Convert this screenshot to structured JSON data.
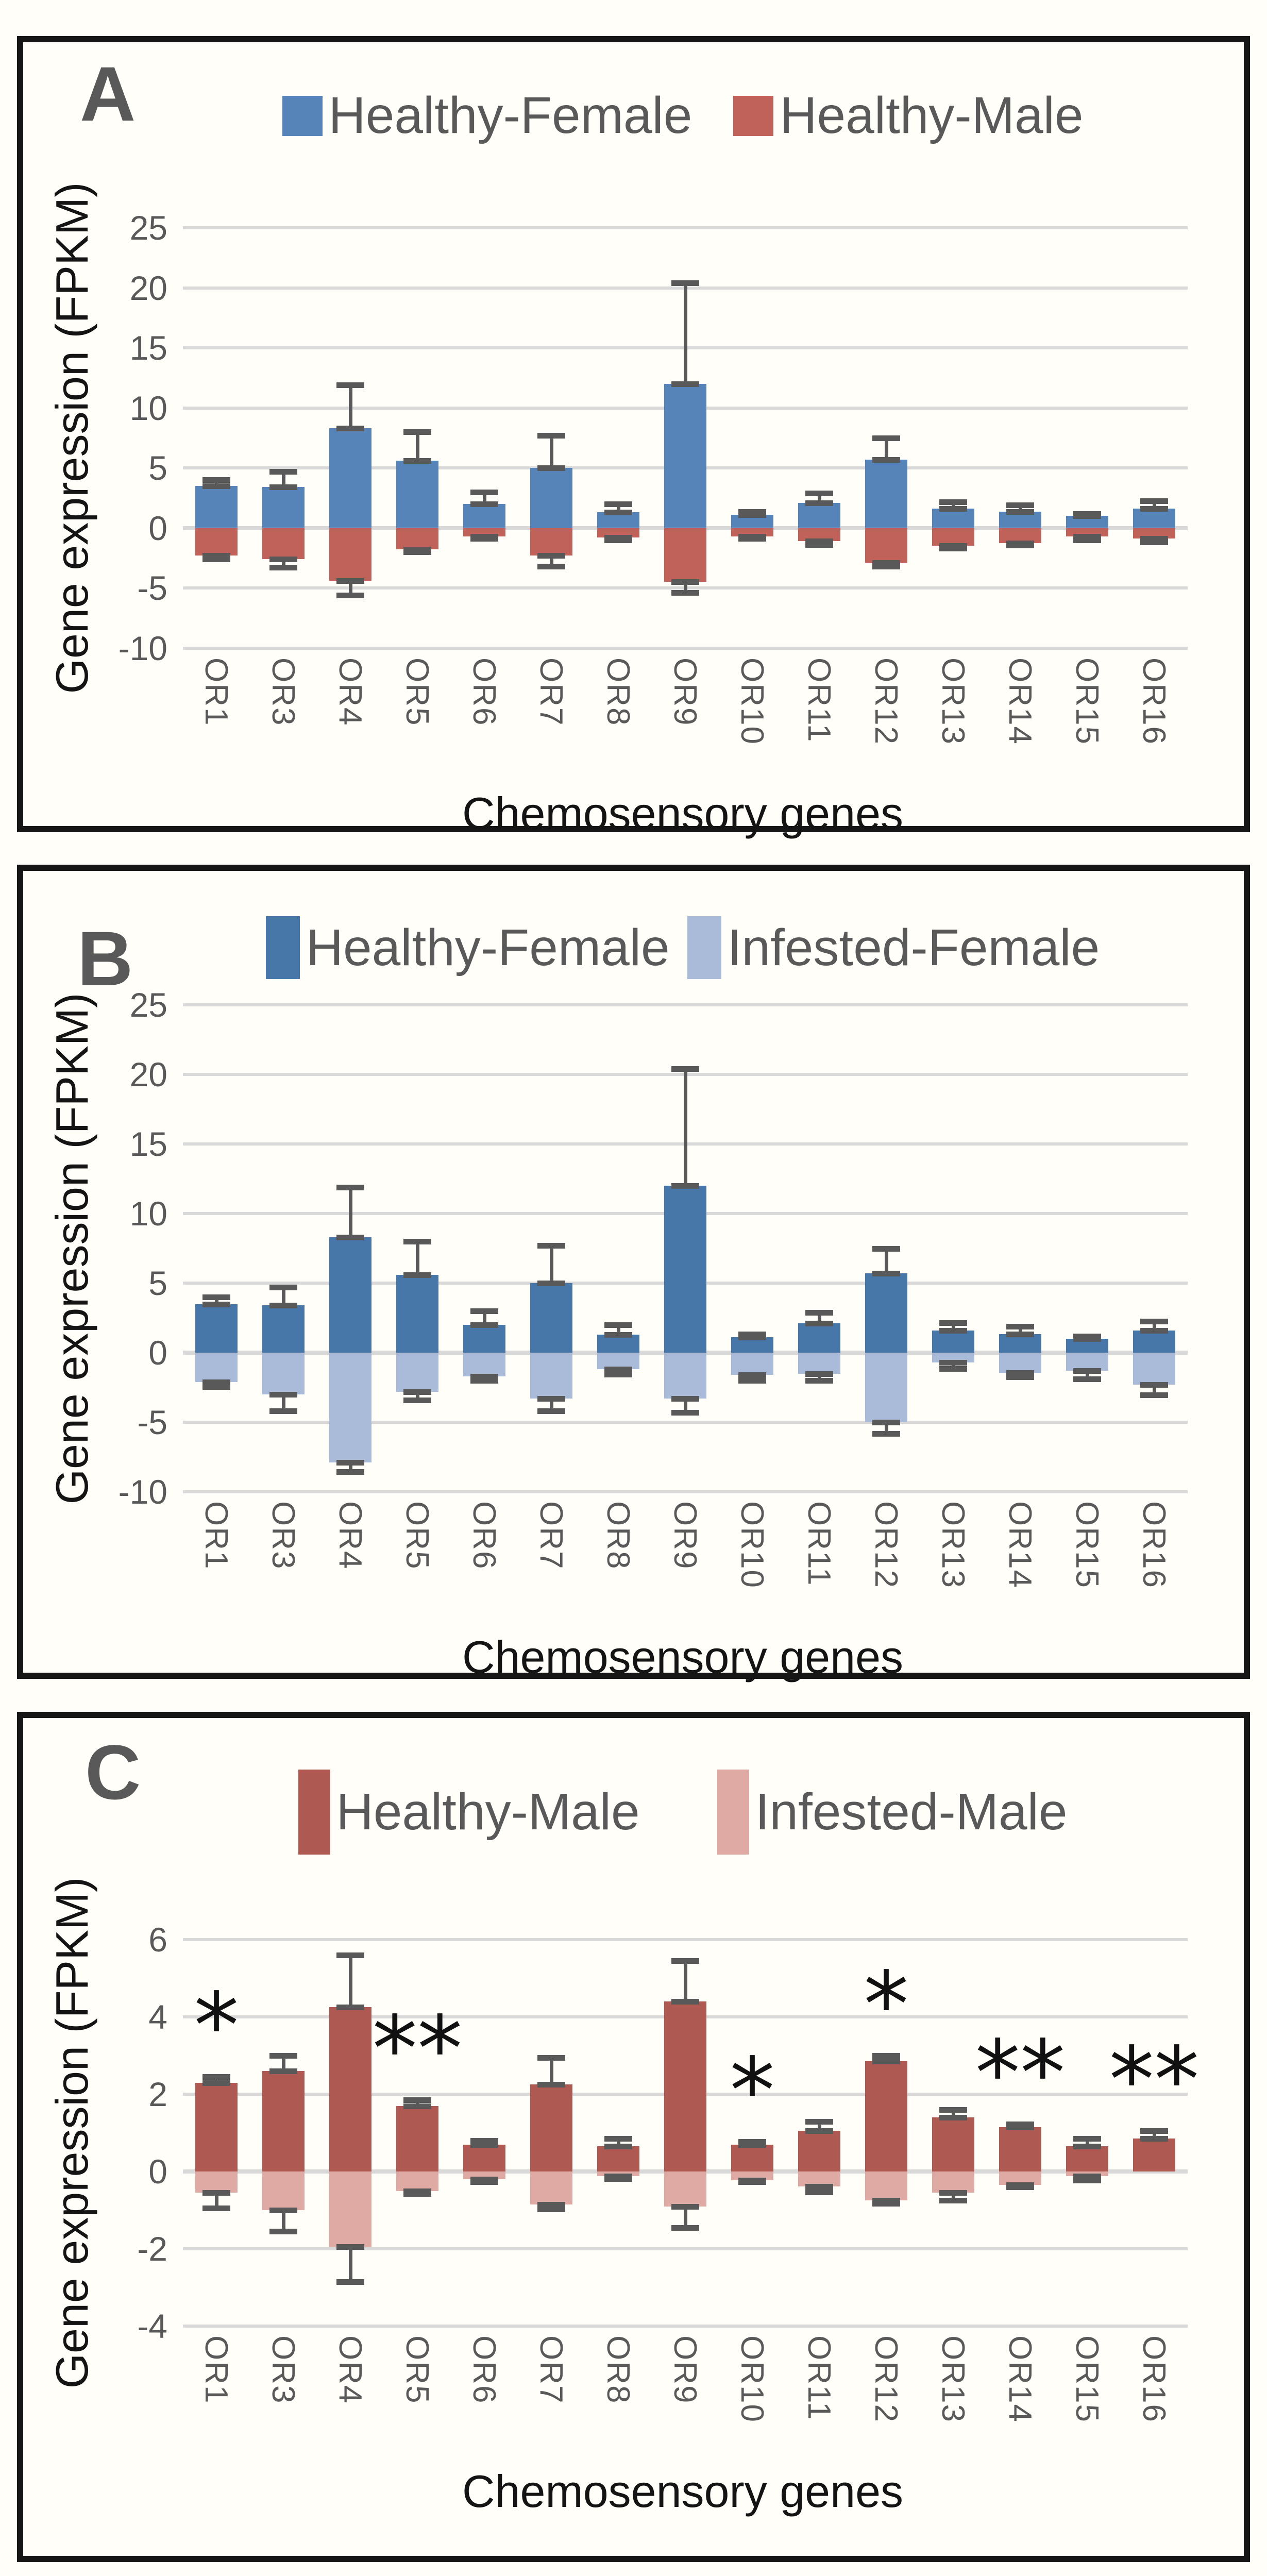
{
  "figure": {
    "y_axis_title": "Gene expression (FPKM)",
    "x_axis_title": "Chemosensory genes",
    "colors": {
      "gridline": "#D9D9D9",
      "error_bar": "#595959",
      "tick_text": "#595959",
      "panel_letter": "#595959",
      "legend_text": "#595959",
      "axis_title_text": "#141414",
      "panel_border": "#161616",
      "background": "#FFFEF9"
    }
  },
  "chart_data": [
    {
      "type": "bar",
      "panel_letter": "A",
      "title": "",
      "xlabel": "Chemosensory genes",
      "ylabel": "Gene expression (FPKM)",
      "ylim": [
        -10,
        25
      ],
      "yticks": [
        25,
        20,
        15,
        10,
        5,
        0,
        -5,
        -10
      ],
      "grid": true,
      "legend_position": "top",
      "categories": [
        "OR1",
        "OR3",
        "OR4",
        "OR5",
        "OR6",
        "OR7",
        "OR8",
        "OR9",
        "OR10",
        "OR11",
        "OR12",
        "OR13",
        "OR14",
        "OR15",
        "OR16"
      ],
      "series": [
        {
          "name": "Healthy-Female",
          "color": "#5784B8",
          "direction": "up",
          "values": [
            3.5,
            3.4,
            8.3,
            5.6,
            2.0,
            5.0,
            1.3,
            12.0,
            1.1,
            2.1,
            5.7,
            1.6,
            1.35,
            1.0,
            1.6
          ],
          "errors": [
            0.5,
            1.3,
            3.6,
            2.4,
            1.0,
            2.7,
            0.7,
            8.4,
            0.25,
            0.8,
            1.8,
            0.55,
            0.55,
            0.2,
            0.65
          ]
        },
        {
          "name": "Healthy-Male",
          "color": "#C0615A",
          "direction": "down",
          "values": [
            -2.3,
            -2.6,
            -4.4,
            -1.8,
            -0.7,
            -2.3,
            -0.8,
            -4.5,
            -0.7,
            -1.1,
            -2.9,
            -1.5,
            -1.25,
            -0.7,
            -0.9
          ],
          "errors": [
            0.3,
            0.7,
            1.2,
            0.2,
            0.2,
            0.9,
            0.2,
            0.9,
            0.2,
            0.3,
            0.3,
            0.2,
            0.2,
            0.3,
            0.3
          ]
        }
      ],
      "annotations": []
    },
    {
      "type": "bar",
      "panel_letter": "B",
      "title": "",
      "xlabel": "Chemosensory genes",
      "ylabel": "Gene expression (FPKM)",
      "ylim": [
        -10,
        25
      ],
      "yticks": [
        25,
        20,
        15,
        10,
        5,
        0,
        -5,
        -10
      ],
      "grid": true,
      "legend_position": "top",
      "categories": [
        "OR1",
        "OR3",
        "OR4",
        "OR5",
        "OR6",
        "OR7",
        "OR8",
        "OR9",
        "OR10",
        "OR11",
        "OR12",
        "OR13",
        "OR14",
        "OR15",
        "OR16"
      ],
      "series": [
        {
          "name": "Healthy-Female",
          "color": "#4677A8",
          "direction": "up",
          "values": [
            3.5,
            3.4,
            8.3,
            5.6,
            2.0,
            5.0,
            1.3,
            12.0,
            1.1,
            2.1,
            5.7,
            1.6,
            1.35,
            1.0,
            1.6
          ],
          "errors": [
            0.5,
            1.3,
            3.6,
            2.4,
            1.0,
            2.7,
            0.7,
            8.4,
            0.25,
            0.8,
            1.8,
            0.55,
            0.55,
            0.2,
            0.65
          ]
        },
        {
          "name": "Infested-Female",
          "color": "#AABAD9",
          "direction": "down",
          "values": [
            -2.1,
            -3.0,
            -7.9,
            -2.8,
            -1.7,
            -3.3,
            -1.2,
            -3.3,
            -1.6,
            -1.5,
            -5.0,
            -0.7,
            -1.45,
            -1.3,
            -2.3
          ],
          "errors": [
            0.35,
            1.2,
            0.65,
            0.6,
            0.3,
            0.9,
            0.35,
            1.0,
            0.4,
            0.5,
            0.8,
            0.45,
            0.3,
            0.6,
            0.75
          ]
        }
      ],
      "annotations": []
    },
    {
      "type": "bar",
      "panel_letter": "C",
      "title": "",
      "xlabel": "Chemosensory genes",
      "ylabel": "Gene expression (FPKM)",
      "ylim": [
        -4,
        6
      ],
      "yticks": [
        6,
        4,
        2,
        0,
        -2,
        -4
      ],
      "grid": true,
      "legend_position": "top",
      "categories": [
        "OR1",
        "OR3",
        "OR4",
        "OR5",
        "OR6",
        "OR7",
        "OR8",
        "OR9",
        "OR10",
        "OR11",
        "OR12",
        "OR13",
        "OR14",
        "OR15",
        "OR16"
      ],
      "series": [
        {
          "name": "Healthy-Male",
          "color": "#AE5A52",
          "direction": "up",
          "values": [
            2.3,
            2.6,
            4.25,
            1.7,
            0.7,
            2.25,
            0.65,
            4.4,
            0.7,
            1.05,
            2.85,
            1.4,
            1.15,
            0.65,
            0.85
          ],
          "errors": [
            0.15,
            0.4,
            1.35,
            0.15,
            0.1,
            0.7,
            0.2,
            1.05,
            0.08,
            0.25,
            0.15,
            0.2,
            0.08,
            0.2,
            0.2
          ]
        },
        {
          "name": "Infested-Male",
          "color": "#DFA9A4",
          "direction": "down",
          "values": [
            -0.55,
            -1.0,
            -1.95,
            -0.5,
            -0.2,
            -0.85,
            -0.12,
            -0.9,
            -0.22,
            -0.38,
            -0.75,
            -0.55,
            -0.35,
            -0.12,
            0
          ],
          "errors": [
            0.4,
            0.55,
            0.9,
            0.07,
            0.07,
            0.12,
            0.06,
            0.55,
            0.05,
            0.15,
            0.07,
            0.2,
            0.05,
            0.1,
            0
          ]
        }
      ],
      "annotations": [
        {
          "category": "OR1",
          "text": "*"
        },
        {
          "category": "OR5",
          "text": "**"
        },
        {
          "category": "OR10",
          "text": "*"
        },
        {
          "category": "OR12",
          "text": "*"
        },
        {
          "category": "OR14",
          "text": "**"
        },
        {
          "category": "OR16",
          "text": "**"
        }
      ]
    }
  ]
}
